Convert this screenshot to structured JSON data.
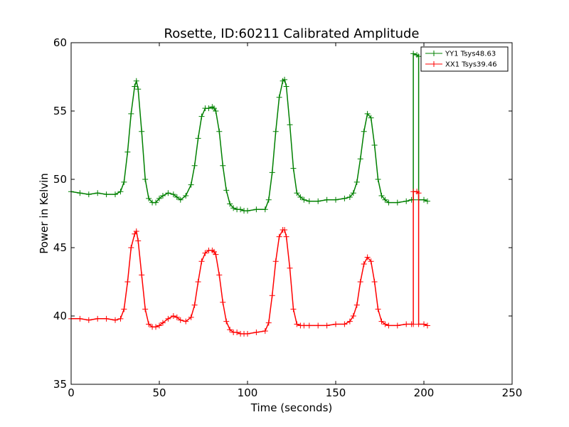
{
  "chart_data": {
    "type": "line",
    "title": "Rosette, ID:60211 Calibrated Amplitude",
    "xlabel": "Time (seconds)",
    "ylabel": "Power in Kelvin",
    "xlim": [
      0,
      250
    ],
    "ylim": [
      35,
      60
    ],
    "xticks": [
      0,
      50,
      100,
      150,
      200,
      250
    ],
    "yticks": [
      35,
      40,
      45,
      50,
      55,
      60
    ],
    "xtick_labels": [
      "0",
      "50",
      "100",
      "150",
      "200",
      "250"
    ],
    "ytick_labels": [
      "35",
      "40",
      "45",
      "50",
      "55",
      "60"
    ],
    "grid": false,
    "legend_position": "top-right",
    "marker": "+",
    "series": [
      {
        "name": "YY1 Tsys48.63",
        "color": "#008000",
        "x": [
          0,
          5,
          10,
          15,
          20,
          25,
          28,
          30,
          32,
          34,
          36,
          37,
          38,
          40,
          42,
          44,
          46,
          48,
          50,
          52,
          55,
          58,
          60,
          62,
          65,
          68,
          70,
          72,
          74,
          76,
          78,
          80,
          81,
          82,
          84,
          86,
          88,
          90,
          92,
          94,
          96,
          98,
          100,
          105,
          110,
          112,
          114,
          116,
          118,
          120,
          121,
          122,
          124,
          126,
          128,
          130,
          132,
          135,
          140,
          145,
          150,
          155,
          158,
          160,
          162,
          164,
          166,
          168,
          170,
          172,
          174,
          176,
          178,
          180,
          185,
          190,
          193,
          194,
          194.01,
          196,
          197,
          197.01,
          200,
          202
        ],
        "y": [
          49.1,
          49.0,
          48.9,
          49.0,
          48.9,
          48.9,
          49.1,
          49.8,
          52.0,
          54.8,
          56.8,
          57.2,
          56.6,
          53.5,
          50.0,
          48.6,
          48.3,
          48.3,
          48.6,
          48.8,
          49.0,
          48.9,
          48.7,
          48.5,
          48.8,
          49.6,
          51.0,
          53.0,
          54.6,
          55.2,
          55.2,
          55.3,
          55.2,
          55.0,
          53.5,
          51.0,
          49.2,
          48.2,
          47.9,
          47.8,
          47.8,
          47.7,
          47.7,
          47.8,
          47.8,
          48.5,
          50.5,
          53.5,
          56.0,
          57.2,
          57.3,
          56.8,
          54.0,
          50.8,
          49.0,
          48.7,
          48.5,
          48.4,
          48.4,
          48.5,
          48.5,
          48.6,
          48.7,
          49.0,
          49.8,
          51.5,
          53.5,
          54.8,
          54.5,
          52.5,
          50.0,
          48.8,
          48.5,
          48.3,
          48.3,
          48.4,
          48.5,
          48.5,
          59.2,
          59.1,
          59.0,
          48.5,
          48.5,
          48.4
        ]
      },
      {
        "name": "XX1 Tsys39.46",
        "color": "#ff0000",
        "x": [
          0,
          5,
          10,
          15,
          20,
          25,
          28,
          30,
          32,
          34,
          36,
          37,
          38,
          40,
          42,
          44,
          46,
          48,
          50,
          52,
          55,
          58,
          60,
          62,
          65,
          68,
          70,
          72,
          74,
          76,
          78,
          80,
          81,
          82,
          84,
          86,
          88,
          90,
          92,
          94,
          96,
          98,
          100,
          105,
          110,
          112,
          114,
          116,
          118,
          120,
          121,
          122,
          124,
          126,
          128,
          130,
          132,
          135,
          140,
          145,
          150,
          155,
          158,
          160,
          162,
          164,
          166,
          168,
          170,
          172,
          174,
          176,
          178,
          180,
          185,
          190,
          193,
          194,
          194.01,
          196,
          197,
          197.01,
          200,
          202
        ],
        "y": [
          39.8,
          39.8,
          39.7,
          39.8,
          39.8,
          39.7,
          39.8,
          40.5,
          42.5,
          45.0,
          46.0,
          46.2,
          45.5,
          43.0,
          40.5,
          39.4,
          39.2,
          39.2,
          39.3,
          39.5,
          39.8,
          40.0,
          39.9,
          39.7,
          39.6,
          39.9,
          40.8,
          42.5,
          44.0,
          44.6,
          44.8,
          44.8,
          44.7,
          44.5,
          43.0,
          41.0,
          39.6,
          39.0,
          38.8,
          38.8,
          38.7,
          38.7,
          38.7,
          38.8,
          38.9,
          39.5,
          41.5,
          44.0,
          45.8,
          46.3,
          46.3,
          45.8,
          43.5,
          40.5,
          39.4,
          39.3,
          39.3,
          39.3,
          39.3,
          39.3,
          39.4,
          39.4,
          39.6,
          40.0,
          40.8,
          42.5,
          43.8,
          44.3,
          44.0,
          42.5,
          40.5,
          39.6,
          39.4,
          39.3,
          39.3,
          39.4,
          39.4,
          39.4,
          49.1,
          49.1,
          49.0,
          39.4,
          39.4,
          39.3
        ]
      }
    ]
  }
}
